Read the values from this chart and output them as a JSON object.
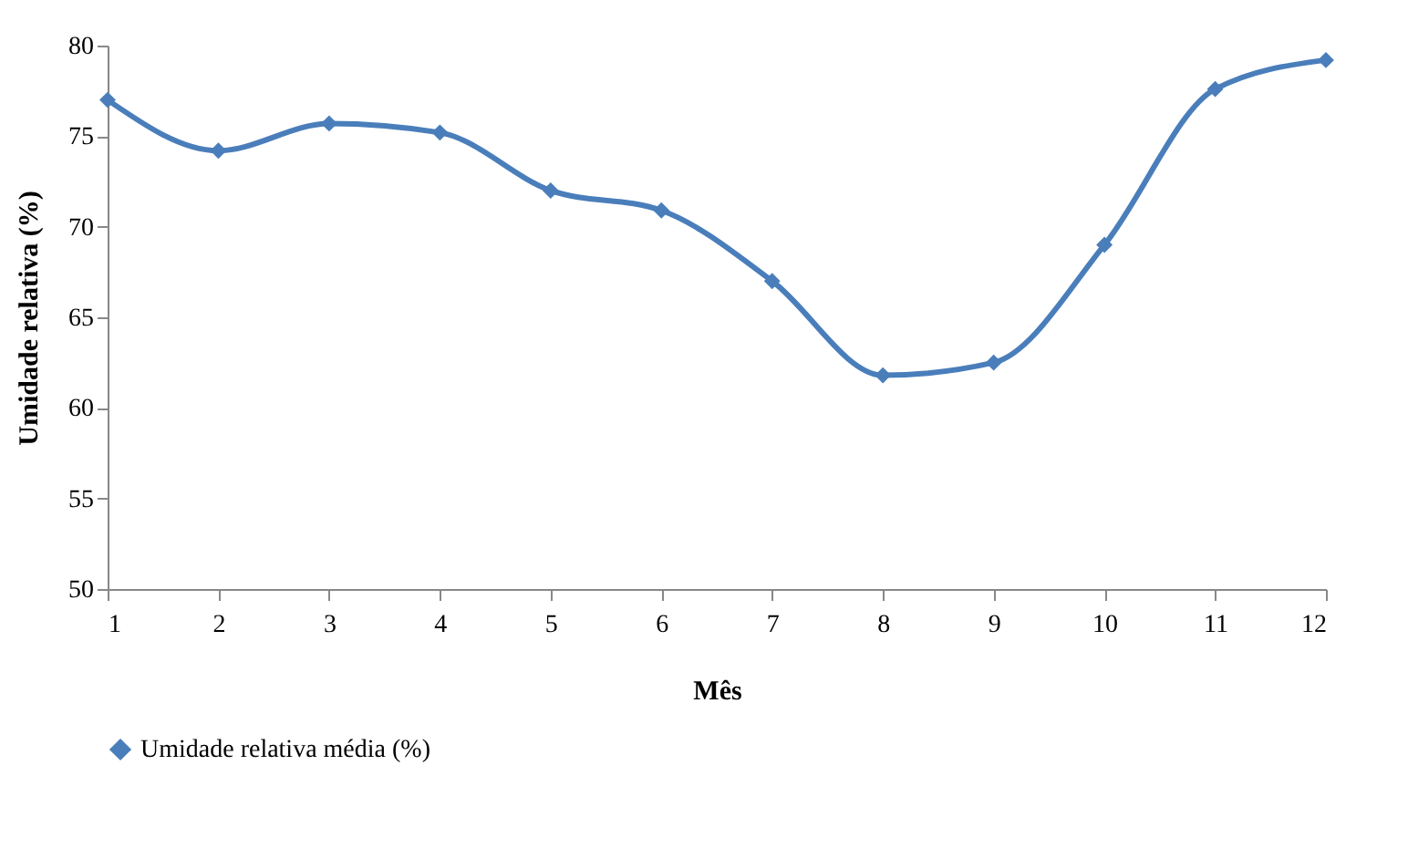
{
  "chart_data": {
    "type": "line",
    "xlabel": "Mês",
    "ylabel": "Umidade relativa (%)",
    "x": [
      1,
      2,
      3,
      4,
      5,
      6,
      7,
      8,
      9,
      10,
      11,
      12
    ],
    "series": [
      {
        "name": "Umidade relativa média (%)",
        "color": "#4a7ebb",
        "values": [
          77.0,
          74.2,
          75.7,
          75.2,
          72.0,
          70.9,
          67.0,
          61.8,
          62.5,
          69.0,
          77.6,
          79.2
        ]
      }
    ],
    "xlim": [
      1,
      12
    ],
    "xticks": [
      1,
      2,
      3,
      4,
      5,
      6,
      7,
      8,
      9,
      10,
      11,
      12
    ],
    "ylim": [
      50,
      80
    ],
    "yticks": [
      50,
      55,
      60,
      65,
      70,
      75,
      80
    ],
    "grid": false,
    "legend": "bottom",
    "marker": "diamond",
    "line_style": "solid"
  }
}
